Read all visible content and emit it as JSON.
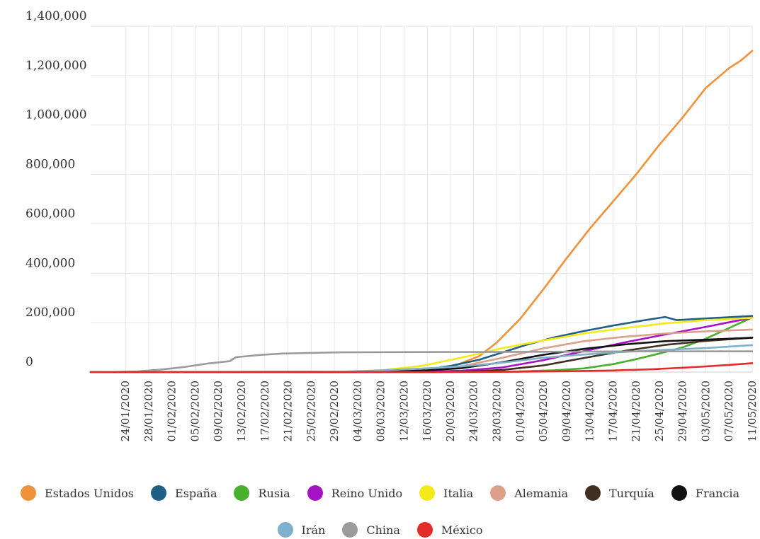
{
  "chart_data": {
    "type": "line",
    "title": "",
    "xlabel": "",
    "ylabel": "",
    "ylim": [
      0,
      1400000
    ],
    "xlim": [
      "2020-01-18",
      "2020-05-11"
    ],
    "grid": true,
    "legend_position": "bottom",
    "y_ticks": [
      {
        "value": 0,
        "label": "0"
      },
      {
        "value": 200000,
        "label": "200,000"
      },
      {
        "value": 400000,
        "label": "400,000"
      },
      {
        "value": 600000,
        "label": "600,000"
      },
      {
        "value": 800000,
        "label": "800,000"
      },
      {
        "value": 1000000,
        "label": "1,000,000"
      },
      {
        "value": 1200000,
        "label": "1,200,000"
      },
      {
        "value": 1400000,
        "label": "1,400,000"
      }
    ],
    "x_ticks": [
      "24/01/2020",
      "28/01/2020",
      "01/02/2020",
      "05/02/2020",
      "09/02/2020",
      "13/02/2020",
      "17/02/2020",
      "21/02/2020",
      "25/02/2020",
      "29/02/2020",
      "04/03/2020",
      "08/03/2020",
      "12/03/2020",
      "16/03/2020",
      "20/03/2020",
      "24/03/2020",
      "28/03/2020",
      "01/04/2020",
      "05/04/2020",
      "09/04/2020",
      "13/04/2020",
      "17/04/2020",
      "21/04/2020",
      "25/04/2020",
      "29/04/2020",
      "03/05/2020",
      "07/05/2020",
      "11/05/2020"
    ],
    "series": [
      {
        "name": "Estados Unidos",
        "color": "#f0923a",
        "points": [
          [
            "2020-01-18",
            0
          ],
          [
            "2020-03-10",
            1000
          ],
          [
            "2020-03-20",
            19000
          ],
          [
            "2020-03-25",
            65000
          ],
          [
            "2020-03-28",
            120000
          ],
          [
            "2020-04-01",
            215000
          ],
          [
            "2020-04-05",
            335000
          ],
          [
            "2020-04-09",
            460000
          ],
          [
            "2020-04-13",
            580000
          ],
          [
            "2020-04-17",
            690000
          ],
          [
            "2020-04-21",
            800000
          ],
          [
            "2020-04-25",
            920000
          ],
          [
            "2020-04-29",
            1030000
          ],
          [
            "2020-05-03",
            1150000
          ],
          [
            "2020-05-07",
            1230000
          ],
          [
            "2020-05-09",
            1260000
          ],
          [
            "2020-05-11",
            1300000
          ]
        ]
      },
      {
        "name": "España",
        "color": "#1f5f86",
        "points": [
          [
            "2020-01-18",
            0
          ],
          [
            "2020-03-08",
            600
          ],
          [
            "2020-03-15",
            7800
          ],
          [
            "2020-03-20",
            25000
          ],
          [
            "2020-03-25",
            50000
          ],
          [
            "2020-03-29",
            80000
          ],
          [
            "2020-04-02",
            110000
          ],
          [
            "2020-04-07",
            141000
          ],
          [
            "2020-04-12",
            166000
          ],
          [
            "2020-04-17",
            188000
          ],
          [
            "2020-04-22",
            208000
          ],
          [
            "2020-04-26",
            223000
          ],
          [
            "2020-04-28",
            210000
          ],
          [
            "2020-05-03",
            217000
          ],
          [
            "2020-05-11",
            227000
          ]
        ]
      },
      {
        "name": "Rusia",
        "color": "#48b02c",
        "points": [
          [
            "2020-01-18",
            0
          ],
          [
            "2020-03-31",
            2000
          ],
          [
            "2020-04-07",
            7500
          ],
          [
            "2020-04-12",
            15000
          ],
          [
            "2020-04-17",
            32000
          ],
          [
            "2020-04-21",
            52000
          ],
          [
            "2020-04-25",
            75000
          ],
          [
            "2020-04-29",
            100000
          ],
          [
            "2020-05-03",
            135000
          ],
          [
            "2020-05-07",
            178000
          ],
          [
            "2020-05-11",
            221000
          ]
        ]
      },
      {
        "name": "Reino Unido",
        "color": "#a412c4",
        "points": [
          [
            "2020-01-18",
            0
          ],
          [
            "2020-03-15",
            1400
          ],
          [
            "2020-03-22",
            5700
          ],
          [
            "2020-03-29",
            19000
          ],
          [
            "2020-04-05",
            48000
          ],
          [
            "2020-04-12",
            85000
          ],
          [
            "2020-04-19",
            120000
          ],
          [
            "2020-04-26",
            152000
          ],
          [
            "2020-05-03",
            183000
          ],
          [
            "2020-05-11",
            220000
          ]
        ]
      },
      {
        "name": "Italia",
        "color": "#f4ea1a",
        "points": [
          [
            "2020-01-18",
            0
          ],
          [
            "2020-02-23",
            150
          ],
          [
            "2020-03-01",
            1700
          ],
          [
            "2020-03-08",
            7400
          ],
          [
            "2020-03-15",
            24700
          ],
          [
            "2020-03-22",
            59000
          ],
          [
            "2020-03-29",
            97000
          ],
          [
            "2020-04-05",
            128000
          ],
          [
            "2020-04-12",
            156000
          ],
          [
            "2020-04-19",
            178000
          ],
          [
            "2020-04-26",
            197000
          ],
          [
            "2020-05-03",
            210000
          ],
          [
            "2020-05-11",
            219000
          ]
        ]
      },
      {
        "name": "Alemania",
        "color": "#dca08a",
        "points": [
          [
            "2020-01-18",
            0
          ],
          [
            "2020-03-08",
            1000
          ],
          [
            "2020-03-15",
            5800
          ],
          [
            "2020-03-22",
            24000
          ],
          [
            "2020-03-29",
            58000
          ],
          [
            "2020-04-05",
            96000
          ],
          [
            "2020-04-12",
            125000
          ],
          [
            "2020-04-19",
            143000
          ],
          [
            "2020-04-26",
            156000
          ],
          [
            "2020-05-03",
            165000
          ],
          [
            "2020-05-11",
            172000
          ]
        ]
      },
      {
        "name": "Turquía",
        "color": "#3f2f22",
        "points": [
          [
            "2020-01-18",
            0
          ],
          [
            "2020-03-17",
            100
          ],
          [
            "2020-03-22",
            1200
          ],
          [
            "2020-03-29",
            9000
          ],
          [
            "2020-04-05",
            27000
          ],
          [
            "2020-04-12",
            57000
          ],
          [
            "2020-04-19",
            86000
          ],
          [
            "2020-04-26",
            110000
          ],
          [
            "2020-05-03",
            126000
          ],
          [
            "2020-05-11",
            139000
          ]
        ]
      },
      {
        "name": "Francia",
        "color": "#111111",
        "points": [
          [
            "2020-01-18",
            0
          ],
          [
            "2020-02-20",
            12
          ],
          [
            "2020-03-01",
            130
          ],
          [
            "2020-03-08",
            1100
          ],
          [
            "2020-03-15",
            5400
          ],
          [
            "2020-03-22",
            16000
          ],
          [
            "2020-03-29",
            40000
          ],
          [
            "2020-04-05",
            70000
          ],
          [
            "2020-04-12",
            94000
          ],
          [
            "2020-04-19",
            112000
          ],
          [
            "2020-04-26",
            125000
          ],
          [
            "2020-05-03",
            131000
          ],
          [
            "2020-05-11",
            139000
          ]
        ]
      },
      {
        "name": "Irán",
        "color": "#7fb0cc",
        "points": [
          [
            "2020-01-18",
            0
          ],
          [
            "2020-02-20",
            5
          ],
          [
            "2020-03-01",
            1500
          ],
          [
            "2020-03-08",
            6600
          ],
          [
            "2020-03-15",
            14000
          ],
          [
            "2020-03-22",
            23000
          ],
          [
            "2020-03-29",
            38000
          ],
          [
            "2020-04-05",
            58000
          ],
          [
            "2020-04-12",
            71000
          ],
          [
            "2020-04-19",
            82000
          ],
          [
            "2020-04-26",
            90000
          ],
          [
            "2020-05-03",
            97000
          ],
          [
            "2020-05-11",
            109000
          ]
        ]
      },
      {
        "name": "China",
        "color": "#9b9b9b",
        "points": [
          [
            "2020-01-18",
            0
          ],
          [
            "2020-01-22",
            550
          ],
          [
            "2020-01-26",
            2700
          ],
          [
            "2020-01-30",
            9700
          ],
          [
            "2020-02-03",
            20000
          ],
          [
            "2020-02-07",
            34000
          ],
          [
            "2020-02-11",
            44000
          ],
          [
            "2020-02-12",
            60000
          ],
          [
            "2020-02-16",
            69000
          ],
          [
            "2020-02-20",
            75000
          ],
          [
            "2020-03-01",
            80000
          ],
          [
            "2020-03-15",
            81000
          ],
          [
            "2020-04-01",
            82000
          ],
          [
            "2020-04-17",
            83500
          ],
          [
            "2020-05-11",
            84000
          ]
        ]
      },
      {
        "name": "México",
        "color": "#e52a2a",
        "points": [
          [
            "2020-01-18",
            0
          ],
          [
            "2020-03-20",
            200
          ],
          [
            "2020-03-31",
            1200
          ],
          [
            "2020-04-10",
            3800
          ],
          [
            "2020-04-17",
            6300
          ],
          [
            "2020-04-24",
            11600
          ],
          [
            "2020-05-01",
            20000
          ],
          [
            "2020-05-07",
            29000
          ],
          [
            "2020-05-11",
            36000
          ]
        ]
      }
    ]
  }
}
